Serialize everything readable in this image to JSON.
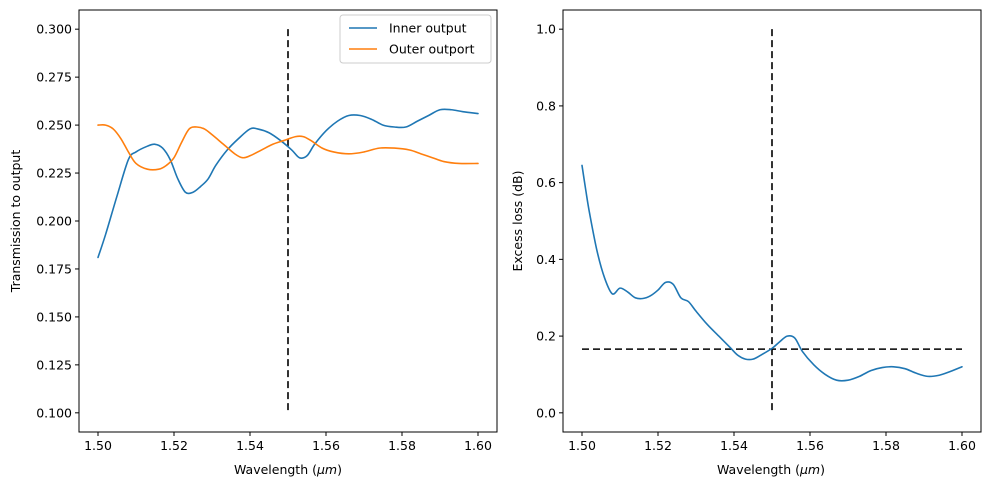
{
  "chart_data": [
    {
      "type": "line",
      "xlabel_prefix": "Wavelength (",
      "xlabel_unit": "μm",
      "xlabel_suffix": ")",
      "ylabel": "Transmission to output",
      "xlim": [
        1.495,
        1.605
      ],
      "ylim": [
        0.09,
        0.31
      ],
      "xticks": [
        1.5,
        1.52,
        1.54,
        1.56,
        1.58,
        1.6
      ],
      "xtick_labels": [
        "1.50",
        "1.52",
        "1.54",
        "1.56",
        "1.58",
        "1.60"
      ],
      "yticks": [
        0.1,
        0.125,
        0.15,
        0.175,
        0.2,
        0.225,
        0.25,
        0.275,
        0.3
      ],
      "ytick_labels": [
        "0.100",
        "0.125",
        "0.150",
        "0.175",
        "0.200",
        "0.225",
        "0.250",
        "0.275",
        "0.300"
      ],
      "legend_position": "top-right",
      "series": [
        {
          "name": "Inner output",
          "color": "#1f77b4",
          "x": [
            1.5,
            1.502,
            1.505,
            1.508,
            1.51,
            1.513,
            1.515,
            1.517,
            1.519,
            1.521,
            1.523,
            1.525,
            1.527,
            1.529,
            1.531,
            1.534,
            1.537,
            1.54,
            1.542,
            1.545,
            1.548,
            1.551,
            1.553,
            1.555,
            1.557,
            1.56,
            1.563,
            1.566,
            1.569,
            1.572,
            1.575,
            1.578,
            1.581,
            1.584,
            1.587,
            1.59,
            1.593,
            1.596,
            1.6
          ],
          "y": [
            0.181,
            0.193,
            0.213,
            0.232,
            0.236,
            0.239,
            0.24,
            0.238,
            0.232,
            0.222,
            0.215,
            0.215,
            0.218,
            0.222,
            0.229,
            0.237,
            0.243,
            0.248,
            0.248,
            0.246,
            0.242,
            0.237,
            0.233,
            0.234,
            0.24,
            0.247,
            0.252,
            0.255,
            0.255,
            0.253,
            0.25,
            0.249,
            0.249,
            0.252,
            0.255,
            0.258,
            0.258,
            0.257,
            0.256
          ]
        },
        {
          "name": "Outer outport",
          "color": "#ff7f0e",
          "x": [
            1.5,
            1.502,
            1.504,
            1.506,
            1.508,
            1.51,
            1.513,
            1.516,
            1.518,
            1.52,
            1.522,
            1.524,
            1.526,
            1.528,
            1.53,
            1.533,
            1.536,
            1.538,
            1.54,
            1.543,
            1.546,
            1.549,
            1.552,
            1.554,
            1.556,
            1.559,
            1.562,
            1.566,
            1.57,
            1.574,
            1.578,
            1.582,
            1.585,
            1.588,
            1.591,
            1.595,
            1.6
          ],
          "y": [
            0.25,
            0.25,
            0.248,
            0.243,
            0.236,
            0.23,
            0.227,
            0.227,
            0.229,
            0.233,
            0.241,
            0.248,
            0.249,
            0.248,
            0.245,
            0.24,
            0.235,
            0.233,
            0.234,
            0.237,
            0.24,
            0.242,
            0.244,
            0.244,
            0.242,
            0.238,
            0.236,
            0.235,
            0.236,
            0.238,
            0.238,
            0.237,
            0.235,
            0.233,
            0.231,
            0.23,
            0.23
          ]
        }
      ],
      "reference_lines": [
        {
          "orientation": "vertical",
          "x": 1.55,
          "y_range": [
            0.1,
            0.3
          ]
        }
      ]
    },
    {
      "type": "line",
      "xlabel_prefix": "Wavelength (",
      "xlabel_unit": "μm",
      "xlabel_suffix": ")",
      "ylabel": "Excess loss (dB)",
      "xlim": [
        1.495,
        1.605
      ],
      "ylim": [
        -0.05,
        1.05
      ],
      "xticks": [
        1.5,
        1.52,
        1.54,
        1.56,
        1.58,
        1.6
      ],
      "xtick_labels": [
        "1.50",
        "1.52",
        "1.54",
        "1.56",
        "1.58",
        "1.60"
      ],
      "yticks": [
        0.0,
        0.2,
        0.4,
        0.6,
        0.8,
        1.0
      ],
      "ytick_labels": [
        "0.0",
        "0.2",
        "0.4",
        "0.6",
        "0.8",
        "1.0"
      ],
      "series": [
        {
          "name": "Excess loss",
          "color": "#1f77b4",
          "x": [
            1.5,
            1.501,
            1.502,
            1.504,
            1.506,
            1.508,
            1.51,
            1.512,
            1.514,
            1.516,
            1.518,
            1.52,
            1.522,
            1.524,
            1.526,
            1.528,
            1.53,
            1.533,
            1.536,
            1.539,
            1.541,
            1.543,
            1.545,
            1.547,
            1.55,
            1.552,
            1.554,
            1.556,
            1.558,
            1.561,
            1.564,
            1.567,
            1.57,
            1.573,
            1.576,
            1.579,
            1.582,
            1.585,
            1.588,
            1.591,
            1.594,
            1.597,
            1.6
          ],
          "y": [
            0.645,
            0.58,
            0.52,
            0.42,
            0.35,
            0.31,
            0.325,
            0.315,
            0.3,
            0.298,
            0.305,
            0.32,
            0.34,
            0.335,
            0.3,
            0.29,
            0.265,
            0.23,
            0.2,
            0.17,
            0.15,
            0.14,
            0.14,
            0.15,
            0.168,
            0.185,
            0.2,
            0.195,
            0.16,
            0.125,
            0.1,
            0.085,
            0.085,
            0.095,
            0.11,
            0.118,
            0.12,
            0.115,
            0.103,
            0.095,
            0.098,
            0.108,
            0.12
          ]
        }
      ],
      "reference_lines": [
        {
          "orientation": "vertical",
          "x": 1.55,
          "y_range": [
            0.0,
            1.0
          ]
        },
        {
          "orientation": "horizontal",
          "y": 0.166,
          "x_range": [
            1.5,
            1.6
          ]
        }
      ]
    }
  ]
}
